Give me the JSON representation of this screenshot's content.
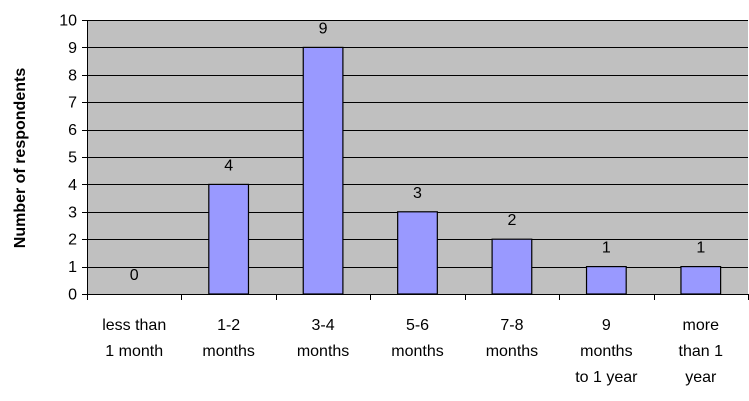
{
  "chart_data": {
    "type": "bar",
    "categories": [
      [
        "less than",
        "1 month"
      ],
      [
        "1-2",
        "months"
      ],
      [
        "3-4",
        "months"
      ],
      [
        "5-6",
        "months"
      ],
      [
        "7-8",
        "months"
      ],
      [
        "9",
        "months",
        "to 1 year"
      ],
      [
        "more",
        "than 1",
        "year"
      ]
    ],
    "values": [
      0,
      4,
      9,
      3,
      2,
      1,
      1
    ],
    "data_labels": [
      "0",
      "4",
      "9",
      "3",
      "2",
      "1",
      "1"
    ],
    "ylabel": "Number of respondents",
    "ylim": [
      0,
      10
    ],
    "yticks": [
      0,
      1,
      2,
      3,
      4,
      5,
      6,
      7,
      8,
      9,
      10
    ],
    "grid": true,
    "colors": {
      "plot_background": "#c0c0c0",
      "bar_fill": "#9999ff",
      "bar_stroke": "#000000",
      "gridline": "#000000"
    }
  }
}
